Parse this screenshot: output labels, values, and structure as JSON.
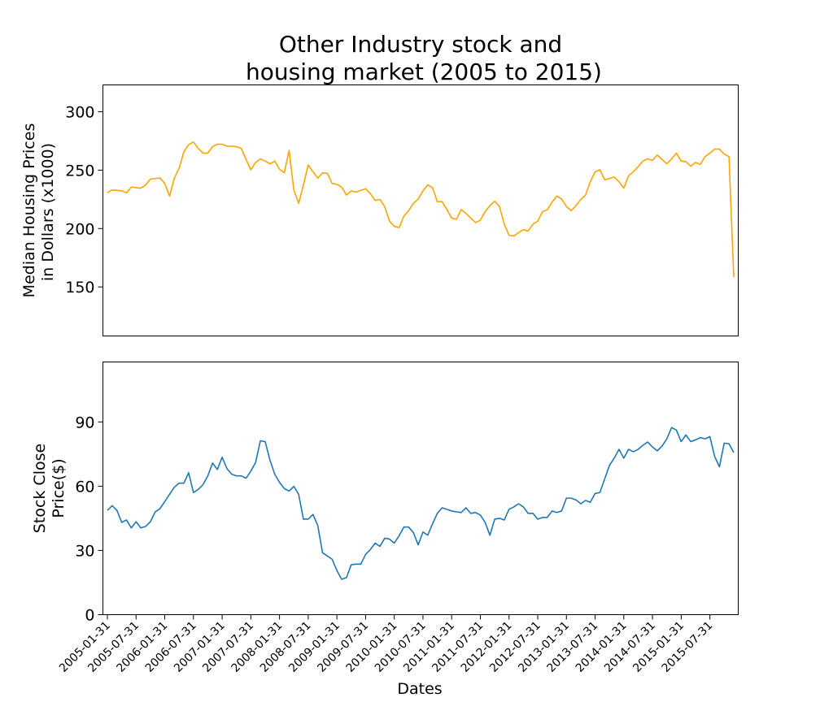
{
  "chart_data": {
    "title_lines": [
      "Other Industry stock and",
      "housing market (2005 to 2015)"
    ],
    "xlabel": "Dates",
    "x_tick_labels": [
      "2005-01-31",
      "2005-07-31",
      "2006-01-31",
      "2006-07-31",
      "2007-01-31",
      "2007-07-31",
      "2008-01-31",
      "2008-07-31",
      "2009-01-31",
      "2009-07-31",
      "2010-01-31",
      "2010-07-31",
      "2011-01-31",
      "2011-07-31",
      "2012-01-31",
      "2012-07-31",
      "2013-01-31",
      "2013-07-31",
      "2014-01-31",
      "2014-07-31",
      "2015-01-31",
      "2015-07-31"
    ],
    "panels": [
      {
        "type": "line",
        "ylabel_lines": [
          "Median Housing Prices",
          "in Dollars (x1000)"
        ],
        "ylim": [
          108,
          323
        ],
        "yticks": [
          150,
          200,
          250,
          300
        ],
        "series": [
          {
            "color": "#FFA500",
            "values": [
              230.8,
              233.0,
              232.7,
              232.3,
              230.6,
              235.5,
              235.0,
              234.6,
              237.3,
              242.3,
              242.8,
              243.3,
              238.6,
              227.8,
              243.1,
              251.6,
              265.7,
              271.9,
              274.1,
              268.6,
              264.6,
              264.6,
              270.1,
              272.2,
              272.2,
              270.5,
              270.5,
              270.1,
              268.6,
              259.2,
              250.3,
              256.6,
              259.7,
              257.8,
              255.4,
              257.8,
              250.8,
              247.7,
              266.9,
              233.0,
              221.6,
              237.3,
              254.4,
              248.6,
              243.1,
              247.7,
              247.3,
              238.6,
              237.8,
              235.5,
              228.7,
              232.3,
              231.2,
              232.7,
              234.1,
              229.9,
              224.0,
              224.9,
              218.8,
              206.3,
              201.9,
              200.8,
              210.5,
              215.3,
              221.6,
              225.3,
              232.3,
              237.3,
              235.0,
              223.0,
              223.0,
              216.3,
              208.9,
              207.9,
              216.3,
              212.9,
              208.9,
              205.1,
              207.2,
              214.5,
              219.6,
              223.4,
              218.8,
              203.8,
              194.2,
              193.6,
              196.5,
              199.0,
              197.9,
              203.8,
              206.3,
              214.5,
              216.1,
              222.6,
              227.8,
              225.3,
              218.8,
              215.3,
              219.6,
              224.9,
              228.7,
              240.1,
              248.6,
              250.3,
              241.7,
              242.9,
              244.1,
              240.1,
              234.6,
              245.2,
              248.6,
              252.9,
              257.8,
              259.7,
              258.4,
              262.9,
              259.2,
              255.4,
              259.7,
              264.6,
              257.8,
              257.2,
              253.3,
              256.6,
              254.9,
              261.6,
              264.6,
              268.0,
              268.0,
              263.8,
              261.6,
              158.4
            ]
          }
        ]
      },
      {
        "type": "line",
        "ylabel_lines": [
          "Stock Close",
          "Price($)"
        ],
        "ylim": [
          0,
          118
        ],
        "yticks": [
          0,
          30,
          60,
          90
        ],
        "series": [
          {
            "color": "#1F77B4",
            "values": [
              48.7,
              50.9,
              48.7,
              43.1,
              44.2,
              40.5,
              43.4,
              40.5,
              41.2,
              43.4,
              48.0,
              49.5,
              52.8,
              56.2,
              59.5,
              61.4,
              61.4,
              66.3,
              57.0,
              58.5,
              60.7,
              64.8,
              70.8,
              67.8,
              73.5,
              68.2,
              65.6,
              64.8,
              64.8,
              63.7,
              67.0,
              71.1,
              81.2,
              80.8,
              72.2,
              65.6,
              61.8,
              58.9,
              57.7,
              59.9,
              56.2,
              44.6,
              44.6,
              46.8,
              41.6,
              28.9,
              27.4,
              25.9,
              20.6,
              16.5,
              17.3,
              23.3,
              23.6,
              23.6,
              28.1,
              30.4,
              33.4,
              31.9,
              35.7,
              35.3,
              33.4,
              36.8,
              40.9,
              40.9,
              38.3,
              32.6,
              38.6,
              37.1,
              42.4,
              47.3,
              49.9,
              49.2,
              48.4,
              48.0,
              47.7,
              49.9,
              47.3,
              47.7,
              46.5,
              43.1,
              37.1,
              44.6,
              45.0,
              44.2,
              49.2,
              50.3,
              51.8,
              50.3,
              47.3,
              47.3,
              44.6,
              45.4,
              45.4,
              48.4,
              47.7,
              48.4,
              54.4,
              54.4,
              53.6,
              51.8,
              53.3,
              52.5,
              56.6,
              57.0,
              63.3,
              69.7,
              73.1,
              77.2,
              73.1,
              77.2,
              76.1,
              77.2,
              79.1,
              80.6,
              78.3,
              76.5,
              78.7,
              82.1,
              87.4,
              86.2,
              80.8,
              83.9,
              80.8,
              81.6,
              82.7,
              82.1,
              83.1,
              73.9,
              69.0,
              80.1,
              79.8,
              75.7
            ]
          }
        ]
      }
    ]
  }
}
